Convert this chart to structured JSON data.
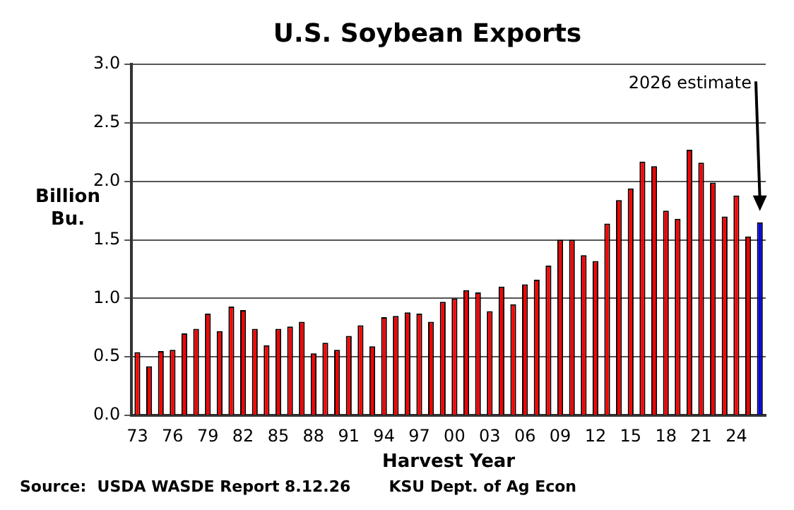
{
  "chart_data": {
    "type": "bar",
    "title": "U.S. Soybean Exports",
    "xlabel": "Harvest Year",
    "ylabel": "Billion Bu.",
    "categories": [
      "73",
      null,
      null,
      "76",
      null,
      null,
      "79",
      null,
      null,
      "82",
      null,
      null,
      "85",
      null,
      null,
      "88",
      null,
      null,
      "91",
      null,
      null,
      "94",
      null,
      null,
      "97",
      null,
      null,
      "00",
      null,
      null,
      "03",
      null,
      null,
      "06",
      null,
      null,
      "09",
      null,
      null,
      "12",
      null,
      null,
      "15",
      null,
      null,
      "18",
      null,
      null,
      "21",
      null,
      null,
      "24",
      null,
      null
    ],
    "values": [
      0.54,
      0.42,
      0.55,
      0.56,
      0.7,
      0.74,
      0.87,
      0.72,
      0.93,
      0.9,
      0.74,
      0.6,
      0.74,
      0.76,
      0.8,
      0.53,
      0.62,
      0.56,
      0.68,
      0.77,
      0.59,
      0.84,
      0.85,
      0.88,
      0.87,
      0.8,
      0.97,
      1.0,
      1.07,
      1.05,
      0.89,
      1.1,
      0.95,
      1.12,
      1.16,
      1.28,
      1.5,
      1.5,
      1.37,
      1.32,
      1.64,
      1.84,
      1.94,
      2.17,
      2.13,
      1.75,
      1.68,
      2.27,
      2.16,
      1.99,
      1.7,
      1.88,
      1.53,
      1.65
    ],
    "colors": [
      "#ff0000",
      "#ff0000",
      "#ff0000",
      "#ff0000",
      "#ff0000",
      "#ff0000",
      "#ff0000",
      "#ff0000",
      "#ff0000",
      "#ff0000",
      "#ff0000",
      "#ff0000",
      "#ff0000",
      "#ff0000",
      "#ff0000",
      "#ff0000",
      "#ff0000",
      "#ff0000",
      "#ff0000",
      "#ff0000",
      "#ff0000",
      "#ff0000",
      "#ff0000",
      "#ff0000",
      "#ff0000",
      "#ff0000",
      "#ff0000",
      "#ff0000",
      "#ff0000",
      "#ff0000",
      "#ff0000",
      "#ff0000",
      "#ff0000",
      "#ff0000",
      "#ff0000",
      "#ff0000",
      "#ff0000",
      "#ff0000",
      "#ff0000",
      "#ff0000",
      "#ff0000",
      "#ff0000",
      "#ff0000",
      "#ff0000",
      "#ff0000",
      "#ff0000",
      "#ff0000",
      "#ff0000",
      "#ff0000",
      "#ff0000",
      "#ff0000",
      "#ff0000",
      "#ff0000",
      "#0000ff"
    ],
    "ylim": [
      0,
      3
    ],
    "yticks": [
      {
        "value": 0,
        "label": "0.0"
      },
      {
        "value": 0.5,
        "label": "0.5"
      },
      {
        "value": 1,
        "label": "1.0"
      },
      {
        "value": 1.5,
        "label": "1.5"
      },
      {
        "value": 2,
        "label": "2.0"
      },
      {
        "value": 2.5,
        "label": "2.5"
      },
      {
        "value": 3,
        "label": "3.0"
      }
    ],
    "grid": "y",
    "legend": false,
    "annotations": [
      "2026 estimate",
      "Source:  USDA WASDE Report 8.12.26",
      "KSU Dept. of Ag Econ"
    ]
  }
}
